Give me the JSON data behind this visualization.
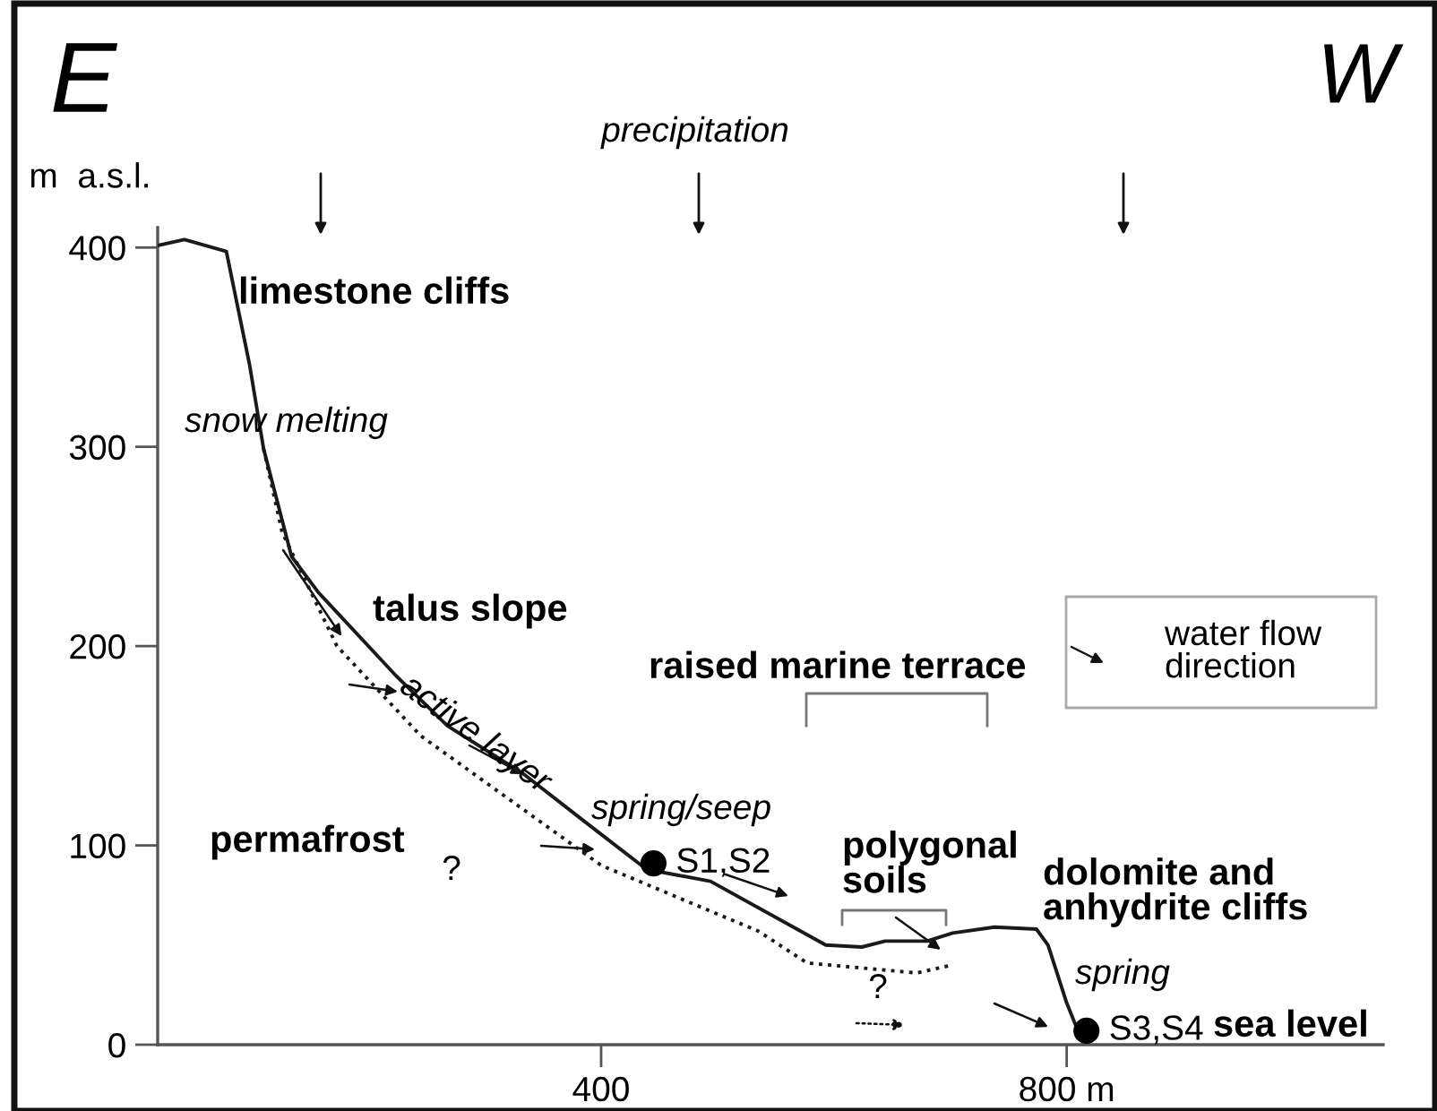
{
  "chart_data": {
    "type": "line",
    "ylabel": "m  a.s.l.",
    "xlim": [
      19,
      1072
    ],
    "ylim": [
      0,
      410
    ],
    "xticks": [
      400,
      {
        "value": 800,
        "label": "800 m"
      }
    ],
    "yticks": [
      0,
      100,
      200,
      300,
      400
    ],
    "grid": false,
    "series": [
      {
        "color": "#1a1a1a",
        "line_style": "solid",
        "x": [
          19,
          42,
          78,
          98,
          110,
          134,
          157,
          224,
          268,
          333,
          388,
          439,
          494,
          593,
          624,
          644,
          680,
          702,
          738,
          774,
          784,
          800,
          811,
          816
        ],
        "values": [
          401,
          404,
          398,
          341,
          299,
          245,
          227,
          185,
          160,
          136,
          111,
          88,
          82,
          50,
          49,
          52,
          52,
          56,
          59,
          58,
          50,
          21,
          5,
          3
        ]
      },
      {
        "color": "#1a1a1a",
        "line_style": "dotted",
        "x": [
          110,
          126,
          173,
          245,
          400,
          535,
          577,
          671,
          702
        ],
        "values": [
          299,
          257,
          200,
          155,
          90,
          57,
          41,
          36,
          40
        ]
      },
      {
        "type": "scatter",
        "color": "#000000",
        "marker": "circle",
        "x": [
          445,
          817
        ],
        "values": [
          91,
          7
        ]
      }
    ],
    "annotations": [
      "E",
      "W",
      "precipitation",
      "limestone cliffs",
      "snow melting",
      {
        "text": "talus slope",
        "x": 177,
        "y": 205
      },
      "active layer",
      "raised marine terrace",
      "spring/seep",
      "permafrost",
      "?",
      "polygonal\nsoils",
      "dolomite and\nanhydrite cliffs",
      "spring",
      "sea level",
      "?",
      "water flow\ndirection",
      {
        "text": "S1,S2",
        "x": 445,
        "y": 91
      },
      {
        "text": "S3,S4",
        "x": 817,
        "y": 7
      }
    ]
  }
}
